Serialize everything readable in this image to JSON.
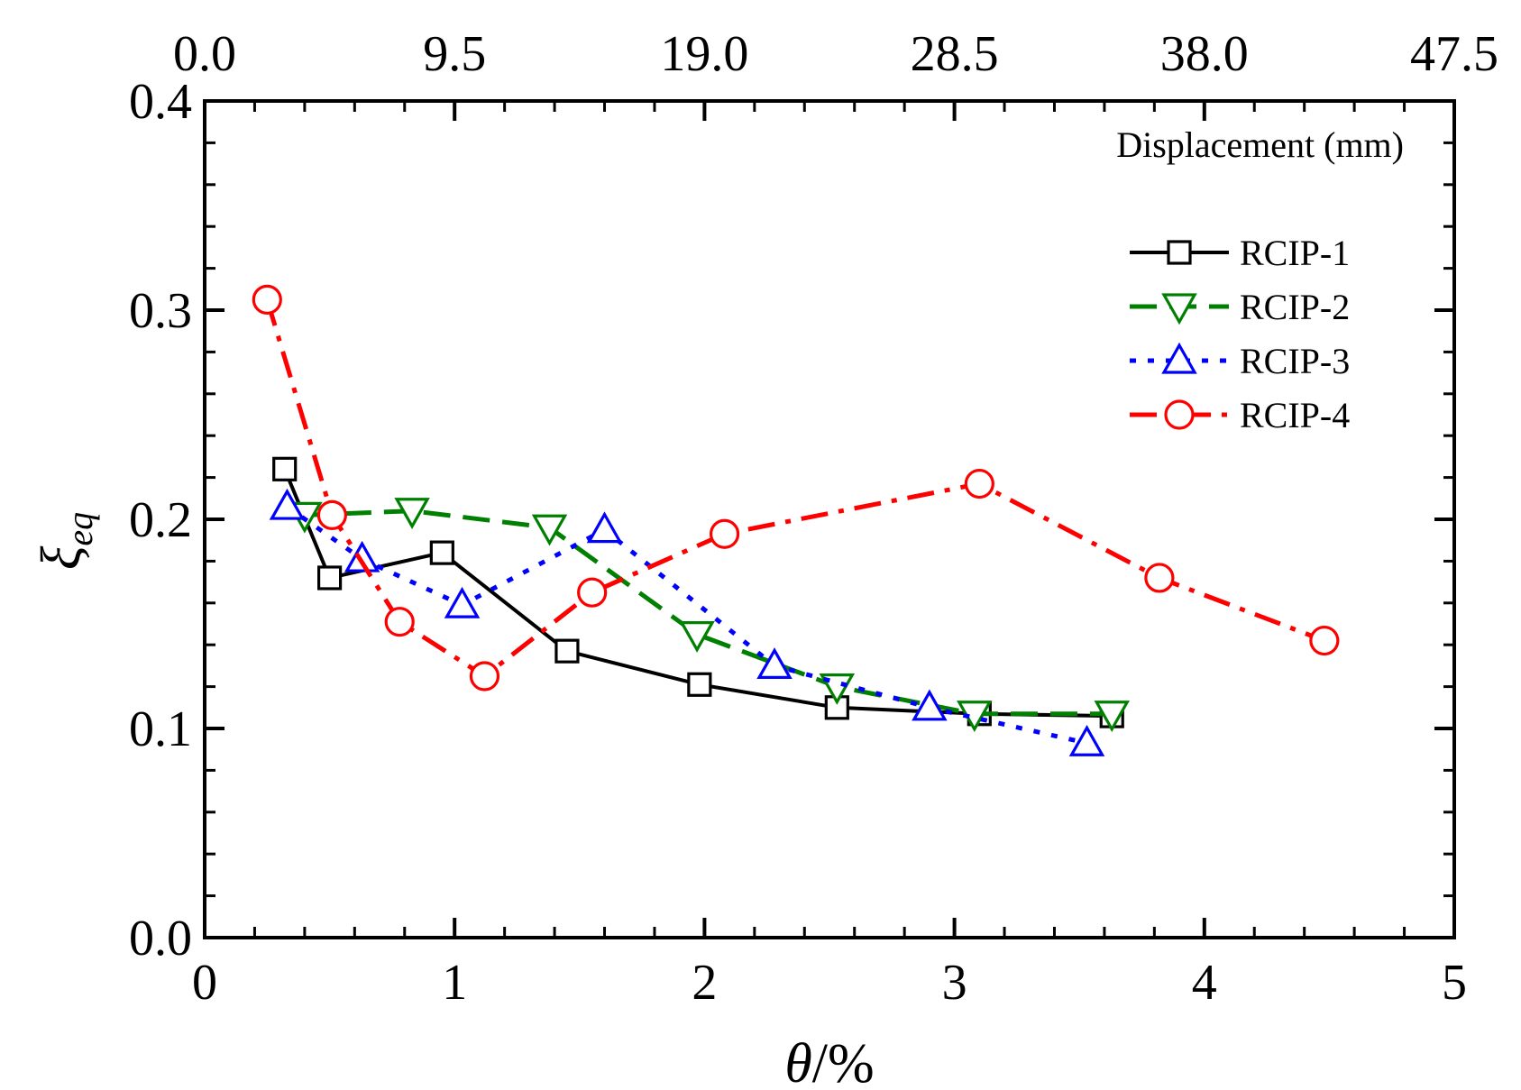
{
  "chart_data": {
    "type": "line",
    "xlabel_italic": "θ",
    "xlabel_rest": "/%",
    "ylabel_main": "ξ",
    "ylabel_sub": "eq",
    "x2label": "Displacement (mm)",
    "xlim": [
      0,
      5
    ],
    "ylim": [
      0,
      0.4
    ],
    "x2lim": [
      0,
      47.5
    ],
    "xticks": [
      "0",
      "1",
      "2",
      "3",
      "4",
      "5"
    ],
    "yticks": [
      "0.0",
      "0.1",
      "0.2",
      "0.3",
      "0.4"
    ],
    "x2ticks": [
      "0.0",
      "9.5",
      "19.0",
      "28.5",
      "38.0",
      "47.5"
    ],
    "legend_position": "top-right",
    "series": [
      {
        "name": "RCIP-1",
        "color": "#000000",
        "marker": "square",
        "dash": "solid",
        "x": [
          0.32,
          0.5,
          0.95,
          1.45,
          1.98,
          2.53,
          3.1,
          3.63
        ],
        "y": [
          0.224,
          0.172,
          0.184,
          0.137,
          0.121,
          0.11,
          0.107,
          0.106
        ]
      },
      {
        "name": "RCIP-2",
        "color": "#008000",
        "marker": "triangle-down",
        "dash": "dashed",
        "x": [
          0.4,
          0.83,
          1.38,
          1.97,
          2.53,
          3.08,
          3.63
        ],
        "y": [
          0.202,
          0.204,
          0.196,
          0.145,
          0.12,
          0.107,
          0.107
        ]
      },
      {
        "name": "RCIP-3",
        "color": "#0000ff",
        "marker": "triangle-up",
        "dash": "dotted",
        "x": [
          0.33,
          0.63,
          1.03,
          1.6,
          2.28,
          2.9,
          3.53
        ],
        "y": [
          0.206,
          0.181,
          0.159,
          0.195,
          0.13,
          0.11,
          0.093
        ]
      },
      {
        "name": "RCIP-4",
        "color": "#ff0000",
        "marker": "circle",
        "dash": "dash-dot",
        "x": [
          0.25,
          0.51,
          0.78,
          1.12,
          1.55,
          2.08,
          3.1,
          3.82,
          4.48
        ],
        "y": [
          0.305,
          0.202,
          0.151,
          0.125,
          0.165,
          0.193,
          0.217,
          0.172,
          0.142
        ]
      }
    ]
  }
}
